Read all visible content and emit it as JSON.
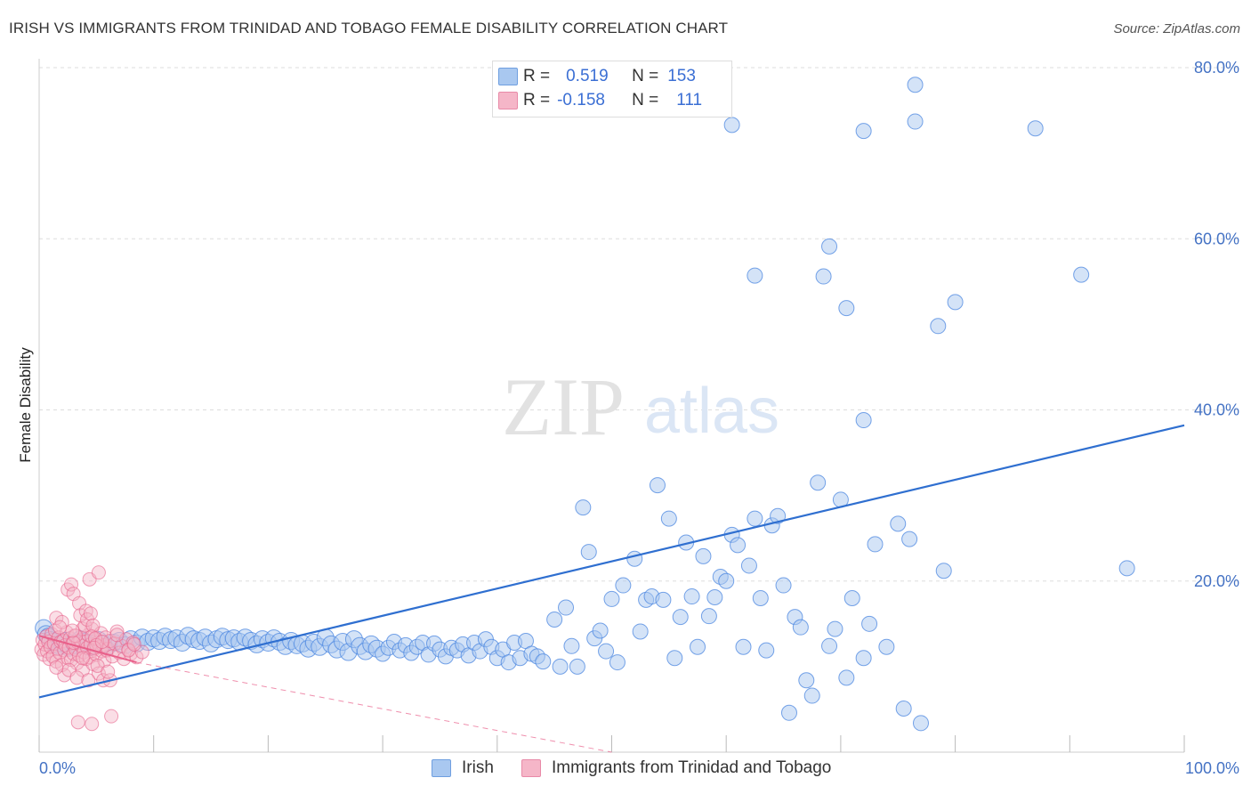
{
  "header": {
    "title": "IRISH VS IMMIGRANTS FROM TRINIDAD AND TOBAGO FEMALE DISABILITY CORRELATION CHART",
    "source": "Source: ZipAtlas.com"
  },
  "legend": {
    "rows": [
      {
        "r_label": "R =",
        "r_value": "0.519",
        "n_label": "N =",
        "n_value": "153",
        "color": "#a9c8f0"
      },
      {
        "r_label": "R =",
        "r_value": "-0.158",
        "n_label": "N =",
        "n_value": "111",
        "color": "#f5b6c8"
      }
    ]
  },
  "watermark": {
    "zip": "ZIP",
    "atlas": "atlas"
  },
  "chart_data": {
    "type": "scatter",
    "title": "IRISH VS IMMIGRANTS FROM TRINIDAD AND TOBAGO FEMALE DISABILITY CORRELATION CHART",
    "xlabel": "",
    "ylabel": "Female Disability",
    "xlim": [
      0,
      100
    ],
    "ylim": [
      0,
      80
    ],
    "x_tick_labels": [
      "0.0%",
      "100.0%"
    ],
    "y_ticks": [
      20,
      40,
      60,
      80
    ],
    "y_tick_labels": [
      "20.0%",
      "40.0%",
      "60.0%",
      "80.0%"
    ],
    "grid": "horizontal dashed",
    "legend_position": "bottom",
    "colors": {
      "irish": "#4a86e0",
      "irish_fill": "#a9c8f0",
      "trinidad": "#e8608a",
      "trinidad_fill": "#f5b6c8",
      "trend_irish": "#2f6fd0",
      "trend_trinidad": "#e8608a"
    },
    "series": [
      {
        "name": "Irish",
        "trend": {
          "x": [
            0,
            100
          ],
          "y": [
            6.4,
            38.2
          ]
        },
        "points": [
          [
            0.4,
            14.5
          ],
          [
            0.6,
            13.8
          ],
          [
            0.8,
            13.5
          ],
          [
            1.0,
            13.1
          ],
          [
            1.2,
            12.9
          ],
          [
            1.5,
            12.6
          ],
          [
            1.8,
            12.4
          ],
          [
            2.0,
            12.7
          ],
          [
            2.3,
            13.0
          ],
          [
            2.6,
            12.2
          ],
          [
            3.0,
            12.8
          ],
          [
            3.3,
            12.5
          ],
          [
            3.6,
            13.2
          ],
          [
            4.0,
            12.9
          ],
          [
            4.4,
            12.3
          ],
          [
            4.8,
            12.7
          ],
          [
            5.2,
            13.1
          ],
          [
            5.6,
            12.6
          ],
          [
            6.0,
            12.4
          ],
          [
            6.5,
            12.8
          ],
          [
            7.0,
            13.0
          ],
          [
            7.5,
            12.5
          ],
          [
            8.0,
            13.2
          ],
          [
            8.5,
            12.7
          ],
          [
            9.0,
            13.4
          ],
          [
            9.5,
            12.9
          ],
          [
            10.0,
            13.3
          ],
          [
            10.5,
            13.0
          ],
          [
            11.0,
            13.5
          ],
          [
            11.5,
            13.1
          ],
          [
            12.0,
            13.3
          ],
          [
            12.5,
            12.8
          ],
          [
            13.0,
            13.6
          ],
          [
            13.5,
            13.2
          ],
          [
            14.0,
            13.0
          ],
          [
            14.5,
            13.4
          ],
          [
            15.0,
            12.7
          ],
          [
            15.5,
            13.2
          ],
          [
            16.0,
            13.5
          ],
          [
            16.5,
            13.1
          ],
          [
            17.0,
            13.3
          ],
          [
            17.5,
            12.9
          ],
          [
            18.0,
            13.4
          ],
          [
            18.5,
            13.0
          ],
          [
            19.0,
            12.6
          ],
          [
            19.5,
            13.2
          ],
          [
            20.0,
            12.8
          ],
          [
            20.5,
            13.3
          ],
          [
            21.0,
            12.9
          ],
          [
            21.5,
            12.4
          ],
          [
            22.0,
            13.0
          ],
          [
            22.5,
            12.5
          ],
          [
            23.0,
            12.7
          ],
          [
            23.5,
            12.1
          ],
          [
            24.0,
            12.8
          ],
          [
            24.5,
            12.3
          ],
          [
            25.0,
            13.4
          ],
          [
            25.5,
            12.6
          ],
          [
            26.0,
            12.0
          ],
          [
            26.5,
            12.9
          ],
          [
            27.0,
            11.7
          ],
          [
            27.5,
            13.2
          ],
          [
            28.0,
            12.4
          ],
          [
            28.5,
            11.8
          ],
          [
            29.0,
            12.6
          ],
          [
            29.5,
            12.1
          ],
          [
            30.0,
            11.5
          ],
          [
            30.5,
            12.2
          ],
          [
            31.0,
            12.9
          ],
          [
            31.5,
            11.9
          ],
          [
            32.0,
            12.5
          ],
          [
            32.5,
            11.6
          ],
          [
            33.0,
            12.3
          ],
          [
            33.5,
            12.8
          ],
          [
            34.0,
            11.4
          ],
          [
            34.5,
            12.7
          ],
          [
            35.0,
            12.0
          ],
          [
            35.5,
            11.2
          ],
          [
            36.0,
            12.2
          ],
          [
            36.5,
            11.9
          ],
          [
            37.0,
            12.6
          ],
          [
            37.5,
            11.3
          ],
          [
            38.0,
            12.8
          ],
          [
            38.5,
            11.8
          ],
          [
            39.0,
            13.2
          ],
          [
            39.5,
            12.3
          ],
          [
            40.0,
            11.0
          ],
          [
            40.5,
            12.0
          ],
          [
            41.0,
            10.5
          ],
          [
            41.5,
            12.8
          ],
          [
            42.0,
            11.0
          ],
          [
            42.5,
            13.0
          ],
          [
            43.0,
            11.5
          ],
          [
            43.5,
            11.2
          ],
          [
            44.0,
            10.6
          ],
          [
            45.0,
            15.5
          ],
          [
            45.5,
            10.0
          ],
          [
            46.0,
            16.9
          ],
          [
            46.5,
            12.4
          ],
          [
            47.0,
            10.0
          ],
          [
            47.5,
            28.6
          ],
          [
            48.0,
            23.4
          ],
          [
            48.5,
            13.3
          ],
          [
            49.0,
            14.2
          ],
          [
            49.5,
            11.8
          ],
          [
            50.0,
            17.9
          ],
          [
            50.5,
            10.5
          ],
          [
            51.0,
            19.5
          ],
          [
            52.0,
            22.6
          ],
          [
            52.5,
            14.1
          ],
          [
            53.0,
            17.8
          ],
          [
            53.5,
            18.2
          ],
          [
            54.0,
            31.2
          ],
          [
            54.5,
            17.8
          ],
          [
            55.0,
            27.3
          ],
          [
            55.5,
            11.0
          ],
          [
            56.0,
            15.8
          ],
          [
            56.5,
            24.5
          ],
          [
            57.0,
            18.2
          ],
          [
            57.5,
            12.3
          ],
          [
            58.0,
            22.9
          ],
          [
            58.5,
            15.9
          ],
          [
            59.0,
            18.1
          ],
          [
            59.5,
            20.5
          ],
          [
            60.0,
            20.0
          ],
          [
            60.5,
            25.4
          ],
          [
            61.0,
            24.2
          ],
          [
            61.5,
            12.3
          ],
          [
            62.0,
            21.8
          ],
          [
            62.5,
            27.3
          ],
          [
            63.0,
            18.0
          ],
          [
            63.5,
            11.9
          ],
          [
            64.0,
            26.5
          ],
          [
            64.5,
            27.6
          ],
          [
            65.0,
            19.5
          ],
          [
            65.5,
            4.6
          ],
          [
            66.0,
            15.8
          ],
          [
            66.5,
            14.6
          ],
          [
            67.0,
            8.4
          ],
          [
            67.5,
            6.6
          ],
          [
            68.0,
            31.5
          ],
          [
            69.0,
            12.4
          ],
          [
            69.5,
            14.4
          ],
          [
            70.0,
            29.5
          ],
          [
            70.5,
            8.7
          ],
          [
            71.0,
            18.0
          ],
          [
            72.0,
            38.8
          ],
          [
            72.5,
            15.0
          ],
          [
            73.0,
            24.3
          ],
          [
            74.0,
            12.3
          ],
          [
            75.0,
            26.7
          ],
          [
            75.5,
            5.1
          ],
          [
            76.0,
            24.9
          ],
          [
            77.0,
            3.4
          ],
          [
            79.0,
            21.2
          ],
          [
            60.5,
            73.3
          ],
          [
            62.5,
            55.7
          ],
          [
            69.0,
            59.1
          ],
          [
            68.5,
            55.6
          ],
          [
            70.5,
            51.9
          ],
          [
            72.0,
            72.6
          ],
          [
            76.5,
            78.0
          ],
          [
            76.5,
            73.7
          ],
          [
            78.5,
            49.8
          ],
          [
            80.0,
            52.6
          ],
          [
            87.0,
            72.9
          ],
          [
            91.0,
            55.8
          ],
          [
            95.0,
            21.5
          ],
          [
            72.0,
            11.0
          ]
        ]
      },
      {
        "name": "Immigrants from Trinidad and Tobago",
        "trend": {
          "x": [
            0,
            8.5
          ],
          "y": [
            13.6,
            10.5
          ]
        },
        "trend_extension": {
          "x": [
            8.5,
            50
          ],
          "y": [
            10.5,
            0
          ]
        },
        "points": [
          [
            0.2,
            12.0
          ],
          [
            0.3,
            13.1
          ],
          [
            0.4,
            11.4
          ],
          [
            0.5,
            12.6
          ],
          [
            0.6,
            13.5
          ],
          [
            0.7,
            11.8
          ],
          [
            0.8,
            12.9
          ],
          [
            0.9,
            10.9
          ],
          [
            1.0,
            12.3
          ],
          [
            1.1,
            13.8
          ],
          [
            1.2,
            11.2
          ],
          [
            1.3,
            12.7
          ],
          [
            1.4,
            14.2
          ],
          [
            1.5,
            10.6
          ],
          [
            1.6,
            12.1
          ],
          [
            1.7,
            13.4
          ],
          [
            1.8,
            11.6
          ],
          [
            1.9,
            12.9
          ],
          [
            2.0,
            10.2
          ],
          [
            2.1,
            13.0
          ],
          [
            2.2,
            11.9
          ],
          [
            2.3,
            12.5
          ],
          [
            2.4,
            14.0
          ],
          [
            2.5,
            11.0
          ],
          [
            2.6,
            12.2
          ],
          [
            2.7,
            13.3
          ],
          [
            2.8,
            10.8
          ],
          [
            2.9,
            12.7
          ],
          [
            3.0,
            11.5
          ],
          [
            3.1,
            13.6
          ],
          [
            3.2,
            12.0
          ],
          [
            3.3,
            10.4
          ],
          [
            3.4,
            12.8
          ],
          [
            3.5,
            11.3
          ],
          [
            3.6,
            13.1
          ],
          [
            3.7,
            12.4
          ],
          [
            3.8,
            9.6
          ],
          [
            3.9,
            11.7
          ],
          [
            4.0,
            12.9
          ],
          [
            4.1,
            10.9
          ],
          [
            4.2,
            12.2
          ],
          [
            4.3,
            13.7
          ],
          [
            4.4,
            11.1
          ],
          [
            4.5,
            12.6
          ],
          [
            4.6,
            14.4
          ],
          [
            4.7,
            10.3
          ],
          [
            4.8,
            12.0
          ],
          [
            4.9,
            13.2
          ],
          [
            5.0,
            11.4
          ],
          [
            5.1,
            12.8
          ],
          [
            5.2,
            9.2
          ],
          [
            5.3,
            12.3
          ],
          [
            5.4,
            13.9
          ],
          [
            5.5,
            11.8
          ],
          [
            5.6,
            12.5
          ],
          [
            5.7,
            10.7
          ],
          [
            5.8,
            13.4
          ],
          [
            5.9,
            11.9
          ],
          [
            6.0,
            12.1
          ],
          [
            6.2,
            13.0
          ],
          [
            6.4,
            11.2
          ],
          [
            6.6,
            12.7
          ],
          [
            6.8,
            14.1
          ],
          [
            7.0,
            11.6
          ],
          [
            7.2,
            12.4
          ],
          [
            7.4,
            10.9
          ],
          [
            7.6,
            13.2
          ],
          [
            7.8,
            12.0
          ],
          [
            8.0,
            11.5
          ],
          [
            8.2,
            12.8
          ],
          [
            8.5,
            11.1
          ],
          [
            9.0,
            11.7
          ],
          [
            1.5,
            15.7
          ],
          [
            2.0,
            15.2
          ],
          [
            2.5,
            19.0
          ],
          [
            2.8,
            19.6
          ],
          [
            3.0,
            18.5
          ],
          [
            3.5,
            17.4
          ],
          [
            3.8,
            14.4
          ],
          [
            4.0,
            14.8
          ],
          [
            3.6,
            16.0
          ],
          [
            4.1,
            16.5
          ],
          [
            4.2,
            15.5
          ],
          [
            4.4,
            20.2
          ],
          [
            4.5,
            16.2
          ],
          [
            4.7,
            14.8
          ],
          [
            3.2,
            13.6
          ],
          [
            4.6,
            13.5
          ],
          [
            4.9,
            13.3
          ],
          [
            5.0,
            12.5
          ],
          [
            3.0,
            12.8
          ],
          [
            2.2,
            9.0
          ],
          [
            2.6,
            9.6
          ],
          [
            3.3,
            8.7
          ],
          [
            4.3,
            8.4
          ],
          [
            5.1,
            10.1
          ],
          [
            5.6,
            8.4
          ],
          [
            6.2,
            8.4
          ],
          [
            1.5,
            9.9
          ],
          [
            3.4,
            3.5
          ],
          [
            4.6,
            3.3
          ],
          [
            6.3,
            4.2
          ],
          [
            5.2,
            21.0
          ],
          [
            3.8,
            11.0
          ],
          [
            2.9,
            14.2
          ],
          [
            1.8,
            14.6
          ],
          [
            4.8,
            12.2
          ],
          [
            6.0,
            9.4
          ],
          [
            5.5,
            12.9
          ],
          [
            6.8,
            13.7
          ],
          [
            7.8,
            11.9
          ],
          [
            8.3,
            12.6
          ]
        ]
      }
    ]
  },
  "bottom_legend": {
    "items": [
      {
        "label": "Irish",
        "color": "#a9c8f0"
      },
      {
        "label": "Immigrants from Trinidad and Tobago",
        "color": "#f5b6c8"
      }
    ]
  }
}
